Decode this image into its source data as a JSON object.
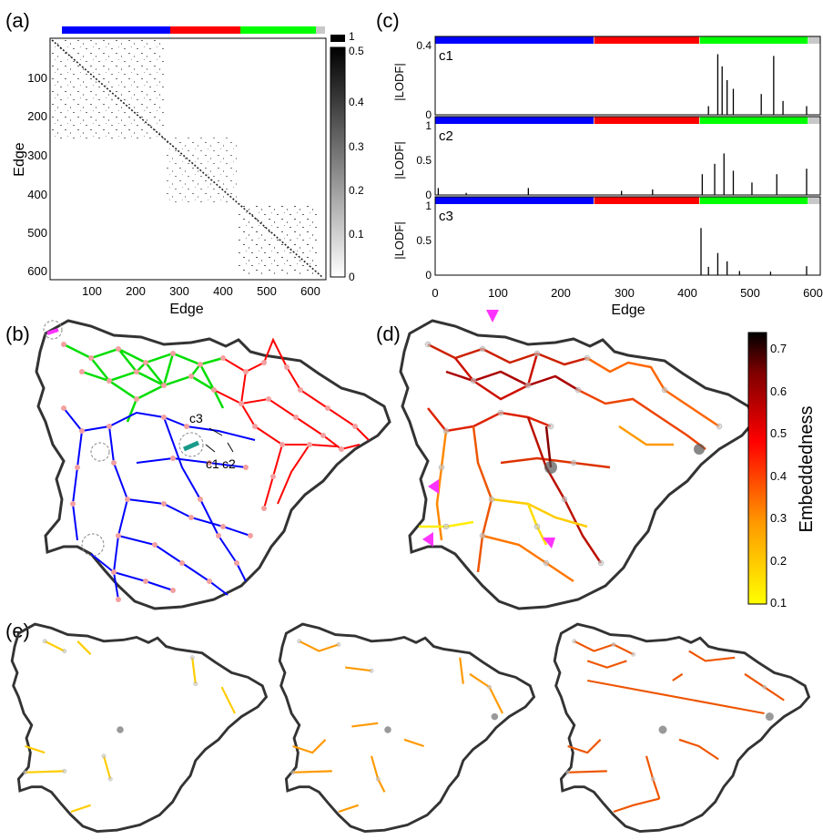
{
  "panels": {
    "a": "(a)",
    "b": "(b)",
    "c": "(c)",
    "d": "(d)",
    "e": "(e)"
  },
  "colors": {
    "blue": "#0000ff",
    "red": "#ff0000",
    "green": "#00ff00",
    "gray": "#c8c8c8",
    "map_outline": "#333333",
    "node": "#f4a0a0",
    "teal": "#1a9a8a",
    "magenta": "#ff33ff"
  },
  "chart_data": [
    {
      "id": "a",
      "type": "heatmap",
      "xlabel": "Edge",
      "ylabel": "Edge",
      "xticks": [
        100,
        200,
        300,
        400,
        500,
        600
      ],
      "yticks": [
        100,
        200,
        300,
        400,
        500,
        600
      ],
      "xlim": [
        1,
        620
      ],
      "ylim": [
        1,
        620
      ],
      "blocks": [
        [
          1,
          255
        ],
        [
          256,
          425
        ],
        [
          426,
          600
        ]
      ],
      "colorbar": {
        "ticks": [
          0,
          0.1,
          0.2,
          0.3,
          0.4,
          0.5,
          1
        ],
        "labels": [
          "0",
          "0.1",
          "0.2",
          "0.3",
          "0.4",
          "0.5",
          "1"
        ]
      }
    },
    {
      "id": "c",
      "type": "line",
      "xlabel": "Edge",
      "xticks": [
        0,
        100,
        200,
        300,
        400,
        500,
        600
      ],
      "xlim": [
        0,
        620
      ],
      "ylabel": "|LODF|",
      "segments": [
        [
          0,
          255
        ],
        [
          256,
          425
        ],
        [
          426,
          600
        ],
        [
          601,
          620
        ]
      ],
      "subplots": [
        {
          "name": "c1",
          "ylim": [
            0,
            0.4
          ],
          "yticks": [
            0,
            0.4
          ],
          "yticklabels": [
            "0",
            "0.4"
          ],
          "peaks": [
            [
              440,
              0.05
            ],
            [
              455,
              0.35
            ],
            [
              462,
              0.28
            ],
            [
              470,
              0.2
            ],
            [
              480,
              0.15
            ],
            [
              525,
              0.12
            ],
            [
              545,
              0.34
            ],
            [
              560,
              0.08
            ],
            [
              598,
              0.05
            ]
          ]
        },
        {
          "name": "c2",
          "ylim": [
            0,
            1
          ],
          "yticks": [
            0,
            0.5,
            1
          ],
          "yticklabels": [
            "0",
            "0.5",
            "1"
          ],
          "peaks": [
            [
              5,
              0.1
            ],
            [
              50,
              0.03
            ],
            [
              150,
              0.1
            ],
            [
              300,
              0.06
            ],
            [
              350,
              0.08
            ],
            [
              430,
              0.3
            ],
            [
              450,
              0.45
            ],
            [
              465,
              0.6
            ],
            [
              480,
              0.35
            ],
            [
              510,
              0.18
            ],
            [
              550,
              0.3
            ],
            [
              598,
              0.38
            ]
          ]
        },
        {
          "name": "c3",
          "ylim": [
            0,
            1
          ],
          "yticks": [
            0,
            0.5,
            1
          ],
          "yticklabels": [
            "0",
            "0.5",
            "1"
          ],
          "peaks": [
            [
              428,
              0.68
            ],
            [
              440,
              0.12
            ],
            [
              455,
              0.32
            ],
            [
              470,
              0.2
            ],
            [
              490,
              0.06
            ],
            [
              540,
              0.05
            ],
            [
              598,
              0.13
            ]
          ]
        }
      ]
    },
    {
      "id": "d-colorbar",
      "type": "heatmap",
      "label": "Embeddedness",
      "ticks": [
        0.1,
        0.2,
        0.3,
        0.4,
        0.5,
        0.6,
        0.7
      ],
      "range": [
        0.1,
        0.74
      ]
    }
  ],
  "map_labels": {
    "c3": "c3",
    "c1": "c1",
    "c2": "c2"
  }
}
